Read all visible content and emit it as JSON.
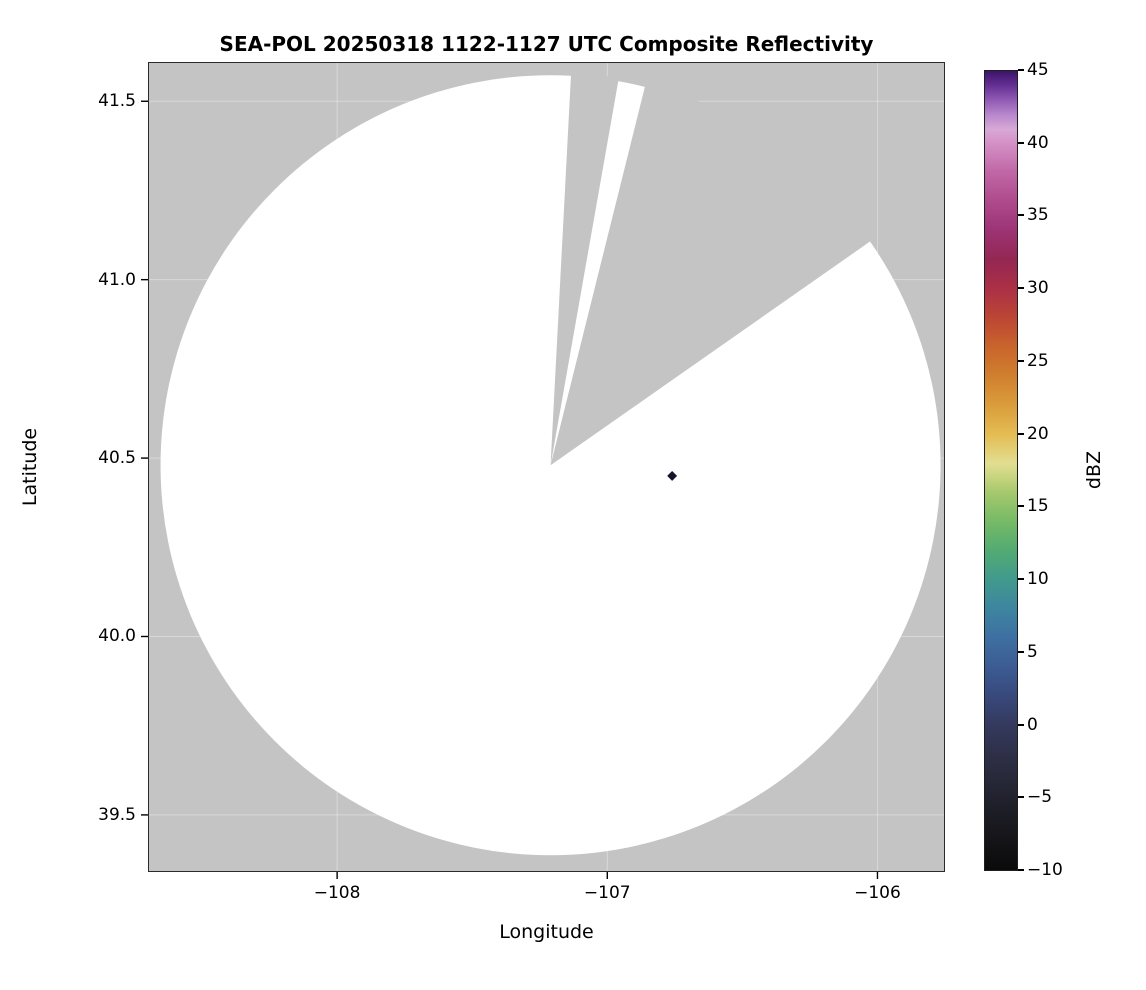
{
  "chart_data": {
    "type": "heatmap",
    "title": "SEA-POL 20250318 1122-1127 UTC Composite Reflectivity",
    "xlabel": "Longitude",
    "ylabel": "Latitude",
    "xlim": [
      -108.7,
      -105.75
    ],
    "ylim": [
      39.34,
      41.61
    ],
    "grid": true,
    "x_ticks": [
      {
        "value": -108,
        "label": "−108"
      },
      {
        "value": -107,
        "label": "−107"
      },
      {
        "value": -106,
        "label": "−106"
      }
    ],
    "y_ticks": [
      {
        "value": 41.5,
        "label": "41.5"
      },
      {
        "value": 41.0,
        "label": "41.0"
      },
      {
        "value": 40.5,
        "label": "40.5"
      },
      {
        "value": 40.0,
        "label": "40.0"
      },
      {
        "value": 39.5,
        "label": "39.5"
      }
    ],
    "colorbar": {
      "label": "dBZ",
      "min": -10,
      "max": 45,
      "ticks": [
        {
          "value": 45,
          "label": "45"
        },
        {
          "value": 40,
          "label": "40"
        },
        {
          "value": 35,
          "label": "35"
        },
        {
          "value": 30,
          "label": "30"
        },
        {
          "value": 25,
          "label": "25"
        },
        {
          "value": 20,
          "label": "20"
        },
        {
          "value": 15,
          "label": "15"
        },
        {
          "value": 10,
          "label": "10"
        },
        {
          "value": 5,
          "label": "5"
        },
        {
          "value": 0,
          "label": "0"
        },
        {
          "value": -5,
          "label": "−5"
        },
        {
          "value": -10,
          "label": "−10"
        }
      ],
      "gradient_stops": [
        {
          "value": -10,
          "color": "#0a0a0a"
        },
        {
          "value": -8,
          "color": "#141418"
        },
        {
          "value": -6,
          "color": "#1d1d26"
        },
        {
          "value": -4,
          "color": "#262736"
        },
        {
          "value": -2,
          "color": "#2e3048"
        },
        {
          "value": 0,
          "color": "#343a5e"
        },
        {
          "value": 2,
          "color": "#38497c"
        },
        {
          "value": 4,
          "color": "#3c5c94"
        },
        {
          "value": 6,
          "color": "#3e70a2"
        },
        {
          "value": 8,
          "color": "#3e85a0"
        },
        {
          "value": 10,
          "color": "#419a8c"
        },
        {
          "value": 12,
          "color": "#52ab72"
        },
        {
          "value": 14,
          "color": "#76ba66"
        },
        {
          "value": 16,
          "color": "#a6c96e"
        },
        {
          "value": 17,
          "color": "#c6d47e"
        },
        {
          "value": 18,
          "color": "#e2de92"
        },
        {
          "value": 20,
          "color": "#e4bc52"
        },
        {
          "value": 22,
          "color": "#da9c3c"
        },
        {
          "value": 24,
          "color": "#d0802e"
        },
        {
          "value": 26,
          "color": "#c8642c"
        },
        {
          "value": 28,
          "color": "#bc4634"
        },
        {
          "value": 30,
          "color": "#ac3046"
        },
        {
          "value": 32,
          "color": "#942752"
        },
        {
          "value": 34,
          "color": "#9c3374"
        },
        {
          "value": 36,
          "color": "#ae4a8c"
        },
        {
          "value": 38,
          "color": "#c066a6"
        },
        {
          "value": 40,
          "color": "#d490c4"
        },
        {
          "value": 41,
          "color": "#d8a8d6"
        },
        {
          "value": 42,
          "color": "#b888cc"
        },
        {
          "value": 43,
          "color": "#9059b4"
        },
        {
          "value": 44,
          "color": "#643094"
        },
        {
          "value": 45,
          "color": "#3c1468"
        }
      ]
    },
    "radar": {
      "center_lon": -107.21,
      "center_lat": 40.48,
      "coverage_radius_px": 390,
      "blocked_sectors_deg": [
        [
          3,
          10
        ],
        [
          14,
          55
        ]
      ],
      "no_coverage_color": "#c4c4c4",
      "coverage_color": "#ffffff",
      "gridline_color": "#ffffff"
    },
    "points": [
      {
        "lon": -106.76,
        "lat": 40.45,
        "color": "#14142c"
      }
    ]
  }
}
